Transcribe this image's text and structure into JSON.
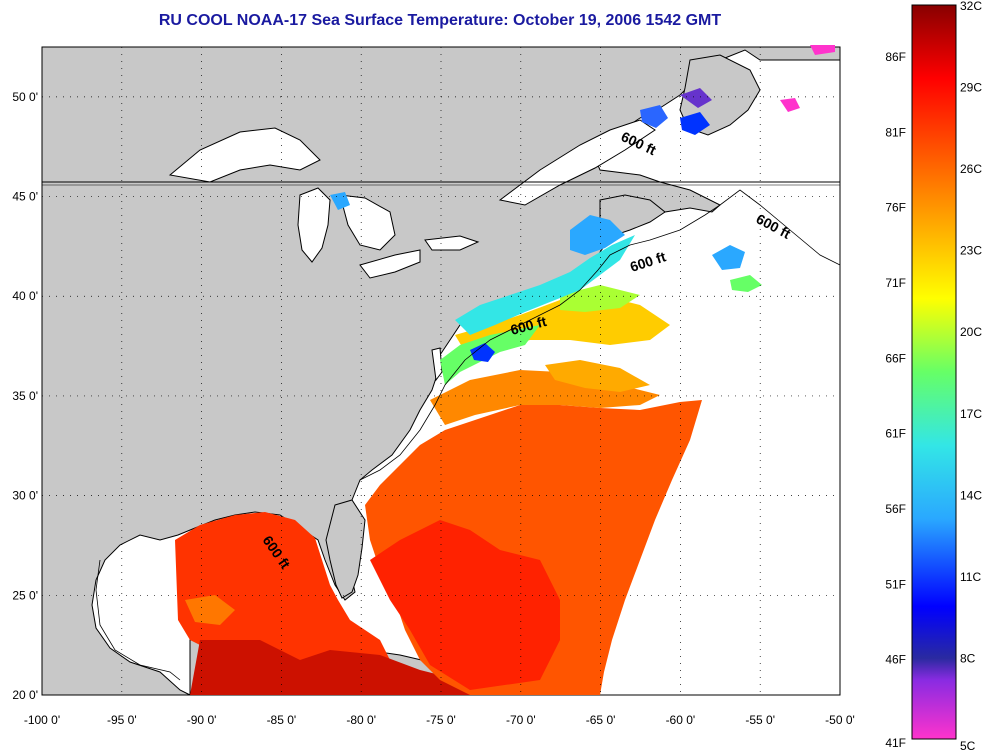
{
  "title": "RU COOL  NOAA-17  Sea Surface Temperature:  October 19, 2006 1542 GMT",
  "map": {
    "lon_range": [
      -100,
      -50
    ],
    "lat_range": [
      20,
      52.5
    ],
    "lon_ticks": [
      "-100 0'",
      "-95 0'",
      "-90 0'",
      "-85 0'",
      "-80 0'",
      "-75 0'",
      "-70 0'",
      "-65 0'",
      "-60 0'",
      "-55 0'",
      "-50 0'"
    ],
    "lat_ticks": [
      "20 0'",
      "25 0'",
      "30 0'",
      "35 0'",
      "40 0'",
      "45 0'",
      "50 0'"
    ],
    "grid": true,
    "land_color": "#c8c8c8",
    "ocean_nodata_color": "#ffffff",
    "isobath_labels": [
      "600 ft",
      "600 ft",
      "600 ft",
      "600 ft",
      "600 ft"
    ]
  },
  "colorbar": {
    "f_labels": [
      "86F",
      "81F",
      "76F",
      "71F",
      "66F",
      "61F",
      "56F",
      "51F",
      "46F",
      "41F"
    ],
    "c_labels": [
      "32C",
      "29C",
      "26C",
      "23C",
      "20C",
      "17C",
      "14C",
      "11C",
      "8C",
      "5C"
    ]
  },
  "colors": {
    "title": "#1a1aa0",
    "land": "#c8c8c8"
  }
}
